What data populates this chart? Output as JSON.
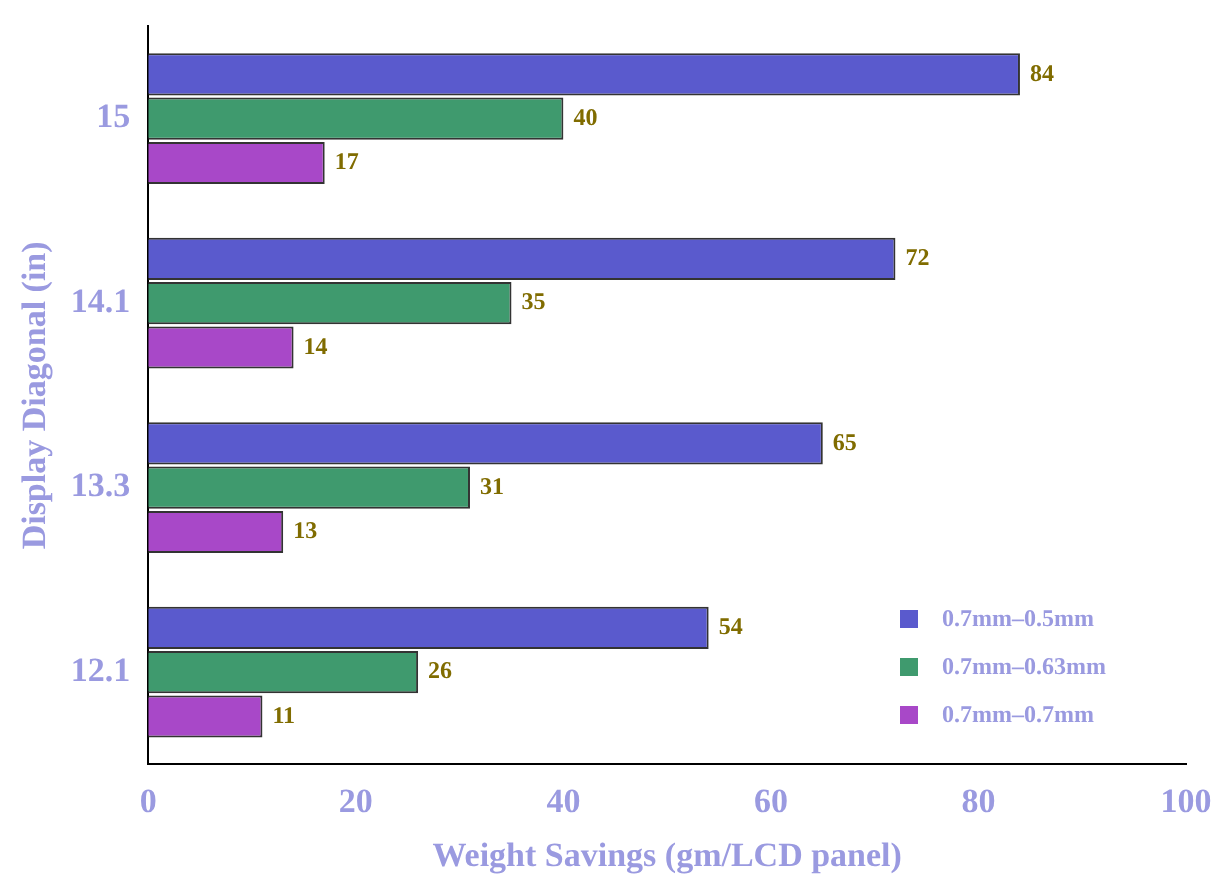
{
  "chart_data": {
    "type": "bar",
    "orientation": "horizontal",
    "categories": [
      "15",
      "14.1",
      "13.3",
      "12.1"
    ],
    "series": [
      {
        "name": "0.7mm–0.5mm",
        "color": "#5a5acd",
        "values": [
          84,
          72,
          65,
          54
        ]
      },
      {
        "name": "0.7mm–0.63mm",
        "color": "#3f9a6e",
        "values": [
          40,
          35,
          31,
          26
        ]
      },
      {
        "name": "0.7mm–0.7mm",
        "color": "#a848c8",
        "values": [
          17,
          14,
          13,
          11
        ]
      }
    ],
    "xlim": [
      0,
      100
    ],
    "xticks": [
      0,
      20,
      40,
      60,
      80,
      100
    ],
    "xlabel": "Weight Savings (gm/LCD panel)",
    "ylabel": "Display Diagonal (in)",
    "data_labels": true,
    "grid": false,
    "legend": "bottom right"
  }
}
